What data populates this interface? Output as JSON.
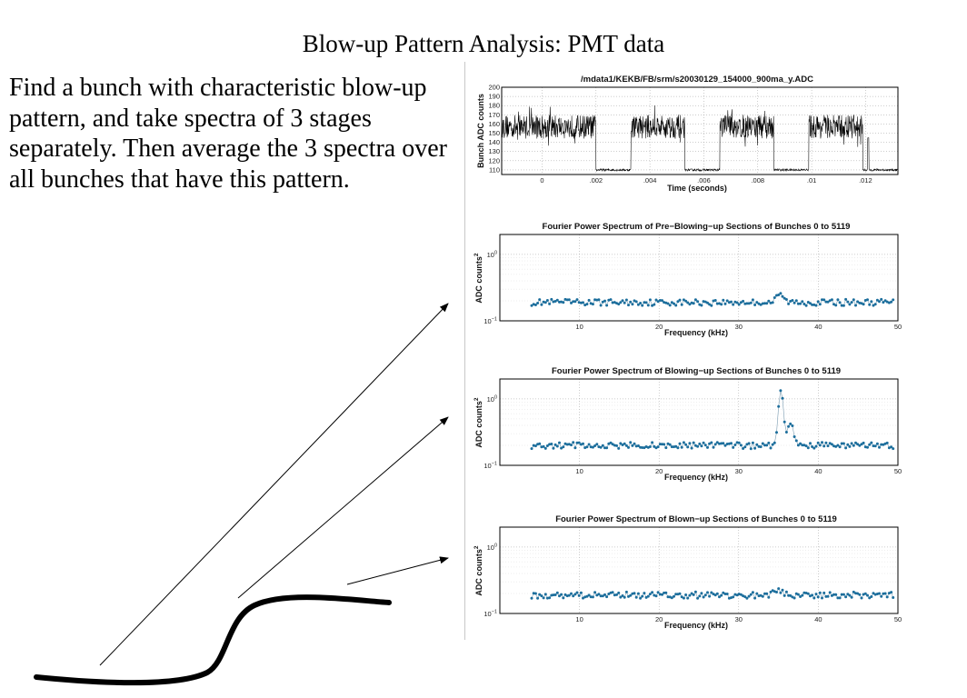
{
  "slide": {
    "title": "Blow-up Pattern Analysis: PMT data",
    "body": "Find a bunch with characteristic blow-up pattern, and take spectra of 3 stages separately.  Then average the 3 spectra over all bunches that have this pattern."
  },
  "chart_data": [
    {
      "type": "line",
      "title": "/mdata1/KEKB/FB/srm/s20030129_154000_900ma_y.ADC",
      "xlabel": "Time (seconds)",
      "ylabel": "Bunch ADC counts",
      "xlim": [
        -0.0015,
        0.0132
      ],
      "ylim": [
        105,
        200
      ],
      "x_ticks": [
        "0",
        ".002",
        ".004",
        ".006",
        ".008",
        ".01",
        ".012"
      ],
      "y_ticks": [
        "110",
        "120",
        "130",
        "140",
        "150",
        "160",
        "170",
        "180",
        "190",
        "200"
      ],
      "grid": true,
      "segments": [
        {
          "x_start": -0.0015,
          "x_end": 0.002,
          "level": 157,
          "state": "high"
        },
        {
          "x_start": 0.002,
          "x_end": 0.0033,
          "level": 110,
          "state": "low"
        },
        {
          "x_start": 0.0033,
          "x_end": 0.0053,
          "level": 157,
          "state": "high"
        },
        {
          "x_start": 0.0053,
          "x_end": 0.0066,
          "level": 110,
          "state": "low"
        },
        {
          "x_start": 0.0066,
          "x_end": 0.0086,
          "level": 157,
          "state": "high"
        },
        {
          "x_start": 0.0086,
          "x_end": 0.0099,
          "level": 110,
          "state": "low"
        },
        {
          "x_start": 0.0099,
          "x_end": 0.0119,
          "level": 157,
          "state": "high"
        },
        {
          "x_start": 0.0119,
          "x_end": 0.0132,
          "level": 110,
          "state": "low"
        }
      ],
      "spike": {
        "x": 0.0121,
        "y": 145
      }
    },
    {
      "type": "scatter",
      "title": "Fourier Power Spectrum of Pre−Blowing−up Sections of Bunches 0 to 5119",
      "xlabel": "Frequency (kHz)",
      "ylabel": "ADC counts",
      "ylabel_sup": "2",
      "x_ticks": [
        "10",
        "20",
        "30",
        "40",
        "50"
      ],
      "y_ticks": [
        "10",
        "10"
      ],
      "y_tick_exps": [
        "0",
        "−1"
      ],
      "xlim": [
        0,
        50
      ],
      "ylim_log10": [
        -1,
        0.3
      ],
      "log_scale_y": true,
      "grid": true,
      "baseline": 0.19,
      "peak": {
        "x": 35.2,
        "y": 0.25,
        "width": 0.6
      },
      "freq_range": [
        4,
        49.4
      ],
      "points": 184
    },
    {
      "type": "scatter",
      "title": "Fourier Power Spectrum of Blowing−up Sections of Bunches 0 to 5119",
      "xlabel": "Frequency (kHz)",
      "ylabel": "ADC counts",
      "ylabel_sup": "2",
      "x_ticks": [
        "10",
        "20",
        "30",
        "40",
        "50"
      ],
      "y_ticks": [
        "10",
        "10"
      ],
      "y_tick_exps": [
        "0",
        "−1"
      ],
      "xlim": [
        0,
        50
      ],
      "ylim_log10": [
        -1,
        0.3
      ],
      "log_scale_y": true,
      "grid": true,
      "baseline": 0.2,
      "peak": {
        "x": 35.3,
        "y": 1.35,
        "width": 0.35
      },
      "secondary_peak": {
        "x": 36.5,
        "y": 0.42,
        "width": 0.5
      },
      "freq_range": [
        4,
        49.4
      ],
      "points": 184
    },
    {
      "type": "scatter",
      "title": "Fourier Power Spectrum of Blown−up Sections of Bunches 0 to 5119",
      "xlabel": "Frequency (kHz)",
      "ylabel": "ADC counts",
      "ylabel_sup": "2",
      "x_ticks": [
        "10",
        "20",
        "30",
        "40",
        "50"
      ],
      "y_ticks": [
        "10",
        "10"
      ],
      "y_tick_exps": [
        "0",
        "−1"
      ],
      "xlim": [
        0,
        50
      ],
      "ylim_log10": [
        -1,
        0.3
      ],
      "log_scale_y": true,
      "grid": true,
      "baseline": 0.19,
      "peak": {
        "x": 35.0,
        "y": 0.22,
        "width": 0.8
      },
      "freq_range": [
        4,
        49.4
      ],
      "points": 184
    }
  ],
  "colors": {
    "spectrum_points": "#1c6e9c",
    "spectrum_line": "#7a9bb0",
    "timeseries": "#000000",
    "grid": "#9a9a9a"
  }
}
